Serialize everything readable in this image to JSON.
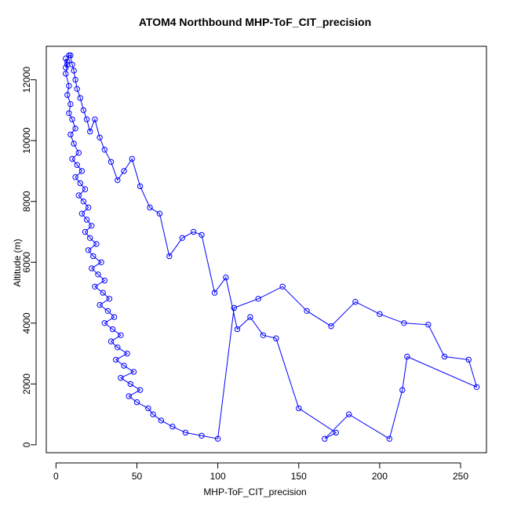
{
  "chart_data": {
    "type": "scatter",
    "title": "ATOM4 Northbound MHP-ToF_CIT_precision",
    "xlabel": "MHP-ToF_CIT_precision",
    "ylabel": "Altitude (m)",
    "xlim": [
      -6,
      266
    ],
    "ylim": [
      -260,
      13100
    ],
    "xticks": [
      0,
      50,
      100,
      150,
      200,
      250
    ],
    "yticks": [
      0,
      2000,
      4000,
      6000,
      8000,
      10000,
      12000
    ],
    "series": [
      {
        "color": "#0000ff",
        "marker": "open-circle",
        "connected": true,
        "x": [
          6,
          7,
          6,
          8,
          7,
          9,
          8,
          10,
          12,
          9,
          11,
          14,
          10,
          13,
          16,
          12,
          15,
          18,
          14,
          17,
          20,
          16,
          19,
          22,
          18,
          21,
          25,
          20,
          23,
          28,
          22,
          26,
          30,
          24,
          29,
          33,
          27,
          32,
          36,
          30,
          35,
          40,
          34,
          38,
          44,
          37,
          42,
          48,
          40,
          46,
          52,
          45,
          50,
          57,
          60,
          65,
          72,
          80,
          90,
          100,
          110,
          125,
          140,
          155,
          170,
          185,
          200,
          215,
          230,
          240,
          255,
          260,
          217,
          214,
          206,
          181,
          166,
          173,
          150,
          136,
          128,
          120,
          112,
          105,
          98,
          90,
          85,
          78,
          70,
          64,
          58,
          52,
          47,
          42,
          38,
          34,
          30,
          27,
          24,
          21,
          19,
          17,
          15,
          13,
          12,
          11,
          10,
          9,
          8,
          7,
          6
        ],
        "y": [
          12700,
          12500,
          12200,
          11800,
          11500,
          11200,
          10900,
          10700,
          10400,
          10200,
          9900,
          9600,
          9400,
          9200,
          9000,
          8800,
          8600,
          8400,
          8200,
          8000,
          7800,
          7600,
          7400,
          7200,
          7000,
          6800,
          6600,
          6400,
          6200,
          6000,
          5800,
          5600,
          5400,
          5200,
          5000,
          4800,
          4600,
          4400,
          4200,
          4000,
          3800,
          3600,
          3400,
          3200,
          3000,
          2800,
          2600,
          2400,
          2200,
          2000,
          1800,
          1600,
          1400,
          1200,
          1000,
          800,
          600,
          400,
          300,
          200,
          4500,
          4800,
          5200,
          4400,
          3900,
          4700,
          4300,
          4000,
          3950,
          2900,
          2800,
          1900,
          2900,
          1800,
          200,
          1000,
          200,
          400,
          1200,
          3500,
          3600,
          4200,
          3800,
          5500,
          5000,
          6900,
          7000,
          6800,
          6200,
          7600,
          7800,
          8500,
          9400,
          9000,
          8700,
          9300,
          9700,
          10100,
          10700,
          10300,
          10700,
          11000,
          11400,
          11700,
          12000,
          12300,
          12500,
          12800,
          12800,
          12600,
          12400
        ]
      }
    ],
    "grid": false,
    "legend": "none"
  }
}
